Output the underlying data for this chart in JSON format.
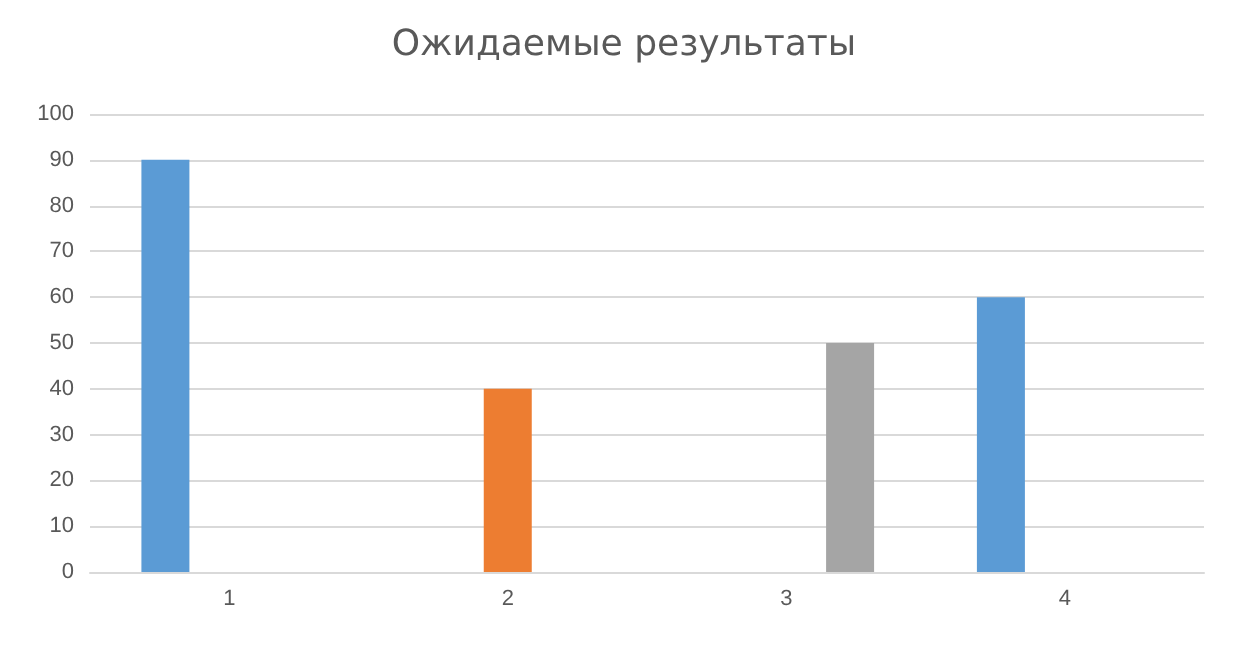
{
  "chart_data": {
    "type": "bar",
    "title": "Ожидаемые результаты",
    "categories": [
      "1",
      "2",
      "3",
      "4"
    ],
    "series": [
      {
        "color": "#5b9bd5",
        "values": [
          90,
          null,
          null,
          60
        ]
      },
      {
        "color": "#ed7d31",
        "values": [
          null,
          40,
          null,
          null
        ]
      },
      {
        "color": "#a5a5a5",
        "values": [
          null,
          null,
          50,
          null
        ]
      }
    ],
    "ylim": [
      0,
      100
    ],
    "yticks": [
      0,
      10,
      20,
      30,
      40,
      50,
      60,
      70,
      80,
      90,
      100
    ],
    "grid": "y"
  }
}
